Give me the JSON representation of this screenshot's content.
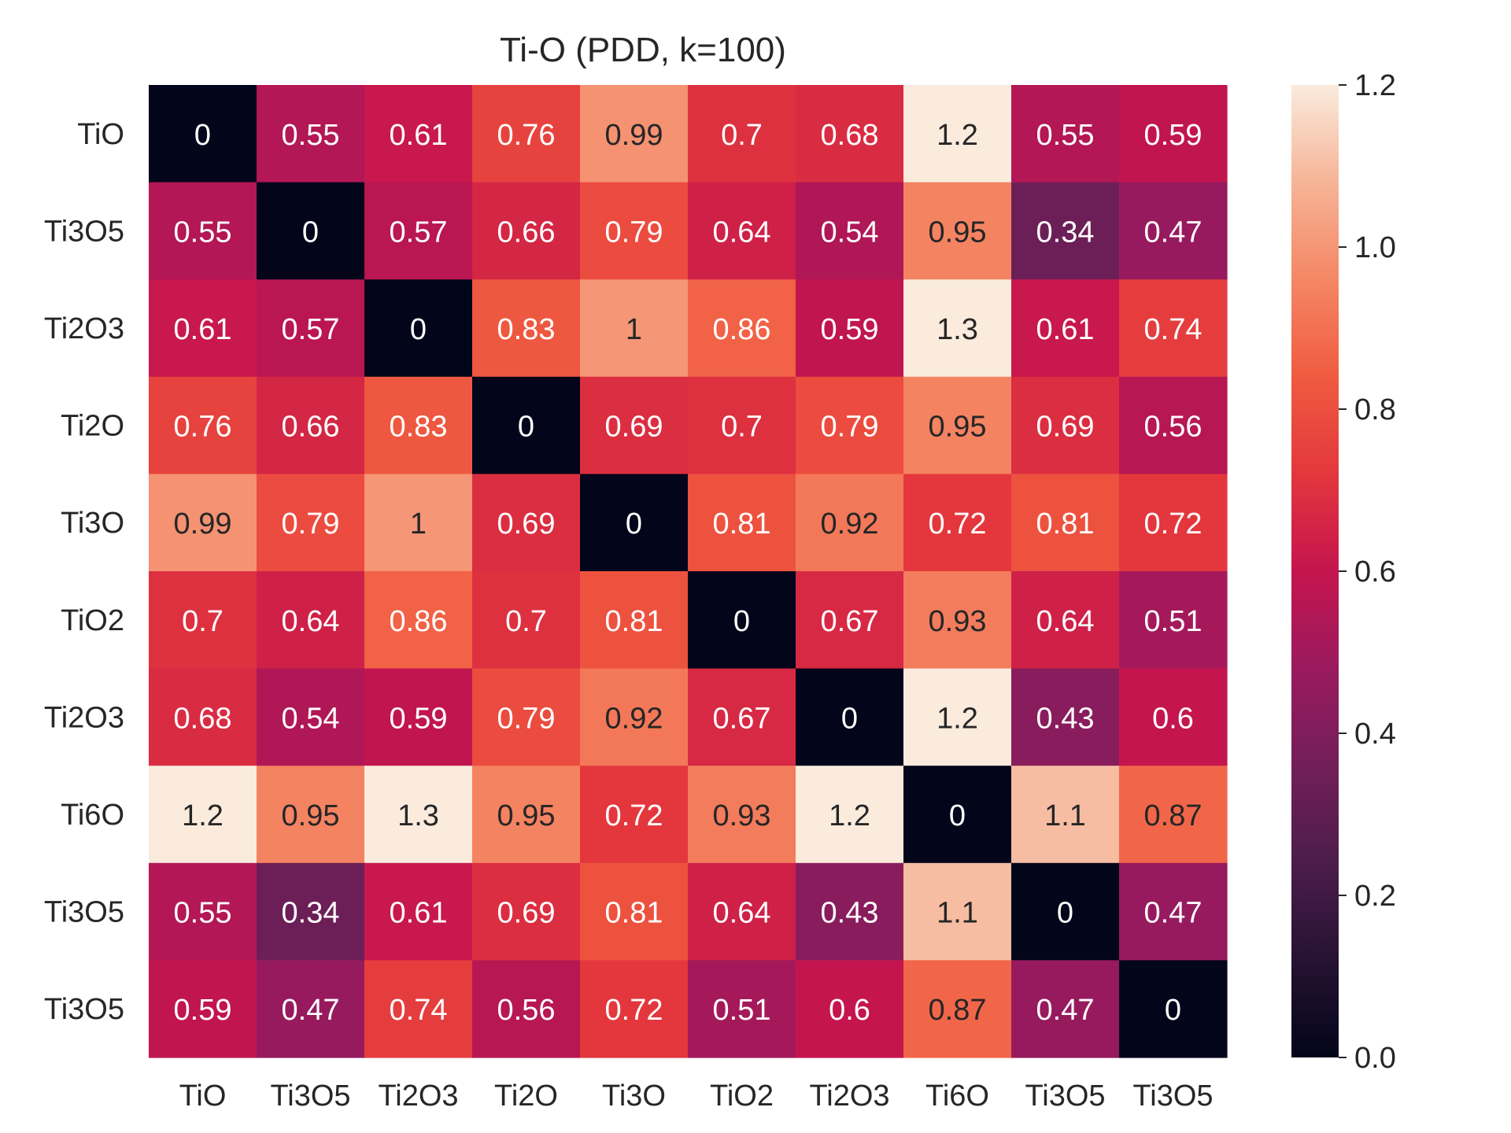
{
  "chart_data": {
    "type": "heatmap",
    "title": "Ti-O (PDD, k=100)",
    "x_labels": [
      "TiO",
      "Ti3O5",
      "Ti2O3",
      "Ti2O",
      "Ti3O",
      "TiO2",
      "Ti2O3",
      "Ti6O",
      "Ti3O5",
      "Ti3O5"
    ],
    "y_labels": [
      "TiO",
      "Ti3O5",
      "Ti2O3",
      "Ti2O",
      "Ti3O",
      "TiO2",
      "Ti2O3",
      "Ti6O",
      "Ti3O5",
      "Ti3O5"
    ],
    "values": [
      [
        0,
        0.55,
        0.61,
        0.76,
        0.99,
        0.7,
        0.68,
        1.2,
        0.55,
        0.59
      ],
      [
        0.55,
        0,
        0.57,
        0.66,
        0.79,
        0.64,
        0.54,
        0.95,
        0.34,
        0.47
      ],
      [
        0.61,
        0.57,
        0,
        0.83,
        1,
        0.86,
        0.59,
        1.3,
        0.61,
        0.74
      ],
      [
        0.76,
        0.66,
        0.83,
        0,
        0.69,
        0.7,
        0.79,
        0.95,
        0.69,
        0.56
      ],
      [
        0.99,
        0.79,
        1,
        0.69,
        0,
        0.81,
        0.92,
        0.72,
        0.81,
        0.72
      ],
      [
        0.7,
        0.64,
        0.86,
        0.7,
        0.81,
        0,
        0.67,
        0.93,
        0.64,
        0.51
      ],
      [
        0.68,
        0.54,
        0.59,
        0.79,
        0.92,
        0.67,
        0,
        1.2,
        0.43,
        0.6
      ],
      [
        1.2,
        0.95,
        1.3,
        0.95,
        0.72,
        0.93,
        1.2,
        0,
        1.1,
        0.87
      ],
      [
        0.55,
        0.34,
        0.61,
        0.69,
        0.81,
        0.64,
        0.43,
        1.1,
        0,
        0.47
      ],
      [
        0.59,
        0.47,
        0.74,
        0.56,
        0.72,
        0.51,
        0.6,
        0.87,
        0.47,
        0
      ]
    ],
    "colorbar": {
      "range": [
        0.0,
        1.2
      ],
      "ticks": [
        "0.0",
        "0.2",
        "0.4",
        "0.6",
        "0.8",
        "1.0",
        "1.2"
      ],
      "colormap": "rocket"
    },
    "legend": "colorbar-right",
    "grid": false
  }
}
